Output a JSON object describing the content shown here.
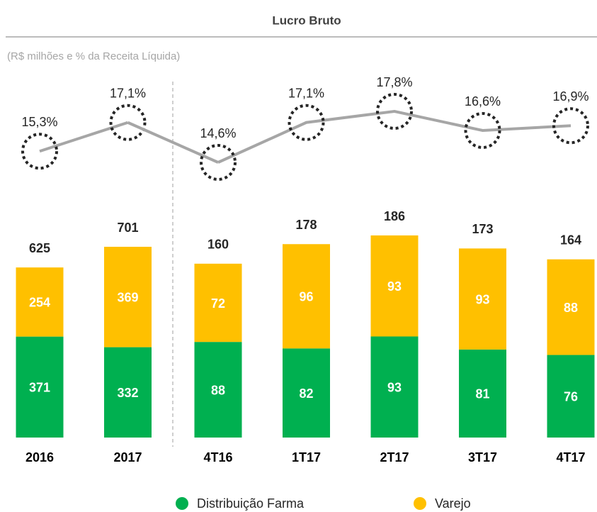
{
  "chart_data": [
    {
      "type": "stacked-bar-line",
      "title": "Lucro Bruto",
      "subtitle": "(R$ milhões e % da Receita Líquida)",
      "categories": [
        "2016",
        "2017"
      ],
      "series": [
        {
          "name": "Distribuição Farma",
          "color": "#00b050",
          "values": [
            371,
            332
          ]
        },
        {
          "name": "Varejo",
          "color": "#ffc000",
          "values": [
            254,
            369
          ]
        }
      ],
      "totals": [
        625,
        701
      ],
      "margin": {
        "color": "#a6a6a6",
        "values": [
          15.3,
          17.1
        ],
        "value_labels": [
          "15,3%",
          "17,1%"
        ]
      }
    },
    {
      "type": "stacked-bar-line",
      "categories": [
        "4T16",
        "1T17",
        "2T17",
        "3T17",
        "4T17"
      ],
      "series": [
        {
          "name": "Distribuição Farma",
          "color": "#00b050",
          "values": [
            88,
            82,
            93,
            81,
            76
          ]
        },
        {
          "name": "Varejo",
          "color": "#ffc000",
          "values": [
            72,
            96,
            93,
            93,
            88
          ]
        }
      ],
      "totals": [
        160,
        178,
        186,
        173,
        164
      ],
      "margin": {
        "color": "#a6a6a6",
        "values": [
          14.6,
          17.1,
          17.8,
          16.6,
          16.9
        ],
        "value_labels": [
          "14,6%",
          "17,1%",
          "17,8%",
          "16,6%",
          "16,9%"
        ]
      }
    }
  ]
}
